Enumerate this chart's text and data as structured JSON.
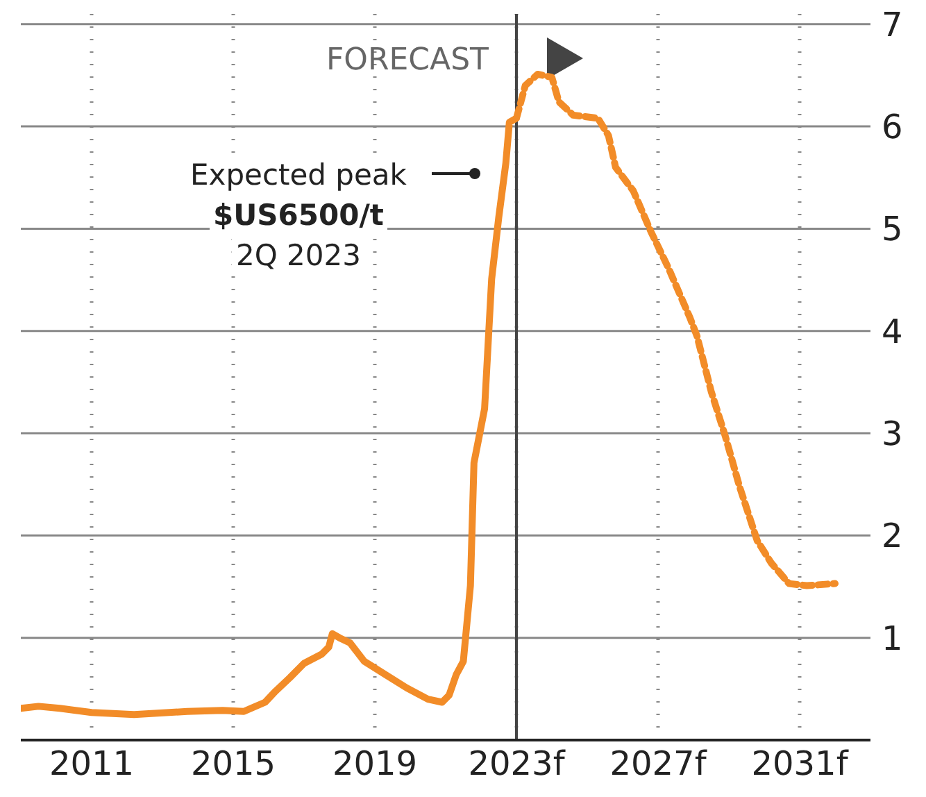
{
  "chart_data": {
    "type": "line",
    "xlim": [
      2009,
      2033
    ],
    "ylim": [
      0,
      7.1
    ],
    "xticks": [
      {
        "value": 2011,
        "label": "2011"
      },
      {
        "value": 2015,
        "label": "2015"
      },
      {
        "value": 2019,
        "label": "2019"
      },
      {
        "value": 2023,
        "label": "2023f"
      },
      {
        "value": 2027,
        "label": "2027f"
      },
      {
        "value": 2031,
        "label": "2031f"
      }
    ],
    "yticks": [
      1,
      2,
      3,
      4,
      5,
      6,
      7
    ],
    "grid": true,
    "series": [
      {
        "color": "#f28c28",
        "line_style": "solid",
        "x": [
          2009.0,
          2009.5,
          2010.1,
          2011.0,
          2012.2,
          2013.7,
          2014.7,
          2015.3,
          2015.9,
          2016.2,
          2016.6,
          2017.0,
          2017.5,
          2017.7,
          2017.8,
          2018.0,
          2018.3,
          2018.7,
          2019.3,
          2019.9,
          2020.5,
          2020.9,
          2021.1,
          2021.3,
          2021.5,
          2021.7,
          2021.8,
          2022.1,
          2022.3,
          2022.5,
          2022.7,
          2022.8,
          2023.0
        ],
        "values": [
          0.31,
          0.33,
          0.31,
          0.27,
          0.25,
          0.28,
          0.29,
          0.28,
          0.37,
          0.48,
          0.61,
          0.75,
          0.84,
          0.91,
          1.04,
          1.0,
          0.95,
          0.77,
          0.64,
          0.51,
          0.4,
          0.37,
          0.44,
          0.64,
          0.77,
          1.51,
          2.71,
          3.24,
          4.51,
          5.11,
          5.64,
          6.04,
          6.08
        ]
      },
      {
        "color": "#f28c28",
        "line_style": "dashed",
        "x": [
          2023.0,
          2023.25,
          2023.6,
          2024.0,
          2024.2,
          2024.6,
          2025.3,
          2025.6,
          2025.8,
          2026.3,
          2026.8,
          2027.3,
          2027.9,
          2028.1,
          2028.5,
          2028.9,
          2029.3,
          2029.8,
          2030.2,
          2030.7,
          2031.2,
          2032.0
        ],
        "values": [
          6.08,
          6.4,
          6.51,
          6.48,
          6.24,
          6.11,
          6.08,
          5.91,
          5.6,
          5.37,
          4.97,
          4.61,
          4.13,
          3.95,
          3.41,
          2.97,
          2.48,
          1.95,
          1.73,
          1.53,
          1.51,
          1.53
        ]
      }
    ],
    "ref_lines": [
      {
        "axis": "x",
        "value": 2023,
        "label": "FORECAST",
        "color": "#444444"
      }
    ],
    "annotations": [
      "Expected peak\n$US6500/t\n2Q 2023"
    ]
  }
}
